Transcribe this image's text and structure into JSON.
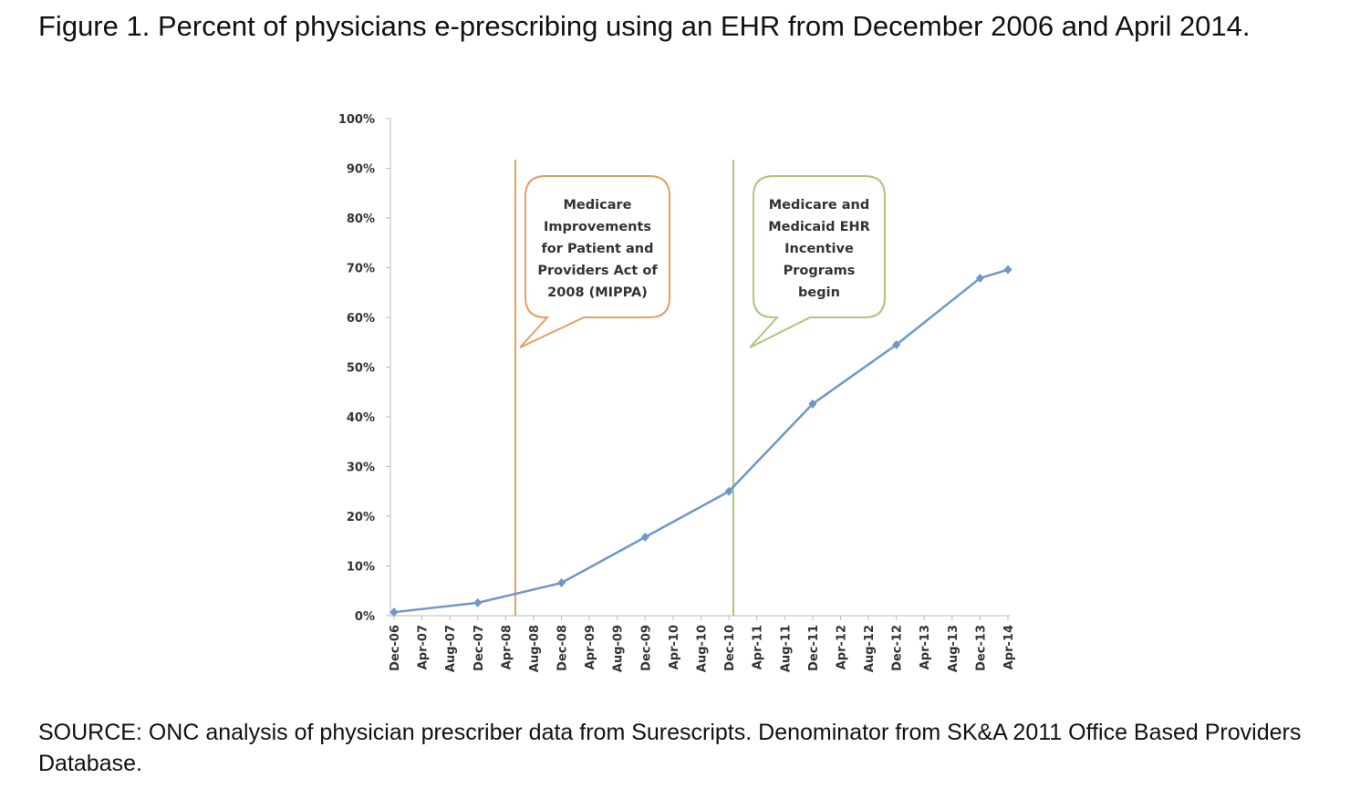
{
  "chart_data": {
    "type": "line",
    "title": "Figure 1. Percent of physicians e-prescribing using an EHR from December 2006 and April 2014.",
    "source": "SOURCE: ONC analysis of physician prescriber data from Surescripts. Denominator from SK&A 2011 Office Based Providers Database.",
    "categories": [
      "Dec-06",
      "Apr-07",
      "Aug-07",
      "Dec-07",
      "Apr-08",
      "Aug-08",
      "Dec-08",
      "Apr-09",
      "Aug-09",
      "Dec-09",
      "Apr-10",
      "Aug-10",
      "Dec-10",
      "Apr-11",
      "Aug-11",
      "Dec-11",
      "Apr-12",
      "Aug-12",
      "Dec-12",
      "Apr-13",
      "Aug-13",
      "Dec-13",
      "Apr-14"
    ],
    "series": [
      {
        "color": "#6f97c8",
        "x": [
          "Dec-06",
          "Dec-07",
          "Dec-08",
          "Dec-09",
          "Dec-10",
          "Dec-11",
          "Dec-12",
          "Dec-13",
          "Apr-14"
        ],
        "values": [
          0.7,
          2.6,
          6.6,
          15.8,
          25,
          42.6,
          54.5,
          67.9,
          69.6
        ]
      }
    ],
    "ylim": [
      0,
      100
    ],
    "yticks": [
      {
        "value": 0,
        "label": "0%"
      },
      {
        "value": 10,
        "label": "10%"
      },
      {
        "value": 20,
        "label": "20%"
      },
      {
        "value": 30,
        "label": "30%"
      },
      {
        "value": 40,
        "label": "40%"
      },
      {
        "value": 50,
        "label": "50%"
      },
      {
        "value": 60,
        "label": "60%"
      },
      {
        "value": 70,
        "label": "70%"
      },
      {
        "value": 80,
        "label": "80%"
      },
      {
        "value": 90,
        "label": "90%"
      },
      {
        "value": 100,
        "label": "100%"
      }
    ],
    "annotations": [
      {
        "lines": [
          "Medicare",
          "Improvements",
          "for Patient and",
          "Providers Act of",
          "2008 (MIPPA)"
        ],
        "color": "#e3a062"
      },
      {
        "lines": [
          "Medicare and",
          "Medicaid EHR",
          "Incentive",
          "Programs",
          "begin"
        ],
        "color": "#a8c87a"
      }
    ]
  }
}
